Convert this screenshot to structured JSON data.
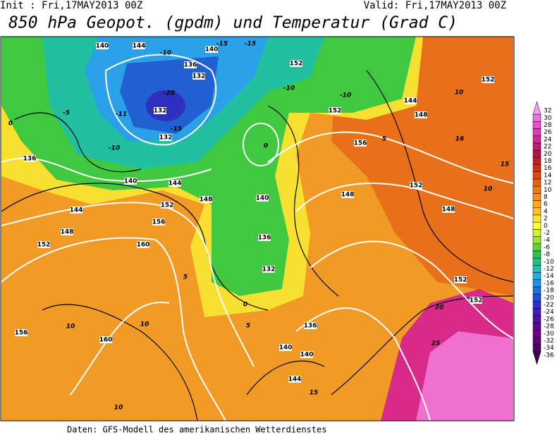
{
  "header": {
    "init": "Init : Fri,17MAY2013 00Z",
    "valid": "Valid: Fri,17MAY2013 00Z",
    "title": "850 hPa Geopot. (gpdm) und Temperatur (Grad C)"
  },
  "colorbar": {
    "entries": [
      {
        "value": 32,
        "color": "#f59af5"
      },
      {
        "value": 30,
        "color": "#f070e0"
      },
      {
        "value": 28,
        "color": "#e850c8"
      },
      {
        "value": 26,
        "color": "#e03cb0"
      },
      {
        "value": 24,
        "color": "#d02890"
      },
      {
        "value": 22,
        "color": "#c01870"
      },
      {
        "value": 20,
        "color": "#b01050"
      },
      {
        "value": 18,
        "color": "#c02020"
      },
      {
        "value": 16,
        "color": "#d03010"
      },
      {
        "value": 14,
        "color": "#e04810"
      },
      {
        "value": 12,
        "color": "#e86010"
      },
      {
        "value": 10,
        "color": "#f07810"
      },
      {
        "value": 8,
        "color": "#f89018"
      },
      {
        "value": 6,
        "color": "#ffa820"
      },
      {
        "value": 4,
        "color": "#ffc020"
      },
      {
        "value": 2,
        "color": "#ffe030"
      },
      {
        "value": 0,
        "color": "#ffff40"
      },
      {
        "value": -2,
        "color": "#d0f030"
      },
      {
        "value": -4,
        "color": "#a0e030"
      },
      {
        "value": -6,
        "color": "#60d040"
      },
      {
        "value": -8,
        "color": "#30c050"
      },
      {
        "value": -10,
        "color": "#20c080"
      },
      {
        "value": -12,
        "color": "#20c0b0"
      },
      {
        "value": -14,
        "color": "#20b0e0"
      },
      {
        "value": -16,
        "color": "#2090f0"
      },
      {
        "value": -18,
        "color": "#2070e0"
      },
      {
        "value": -20,
        "color": "#2050d0"
      },
      {
        "value": -22,
        "color": "#3030c0"
      },
      {
        "value": -24,
        "color": "#4020b0"
      },
      {
        "value": -26,
        "color": "#5010a0"
      },
      {
        "value": -28,
        "color": "#600890"
      },
      {
        "value": -30,
        "color": "#700080"
      },
      {
        "value": -32,
        "color": "#600070"
      },
      {
        "value": -34,
        "color": "#500060"
      },
      {
        "value": -36,
        "color": "#400050"
      }
    ]
  },
  "map": {
    "contour_labels": [
      "140",
      "144",
      "-10",
      "140",
      "-15",
      "-15",
      "136",
      "132",
      "-20",
      "132",
      "-11",
      "-15",
      "132",
      "-10",
      "136",
      "140",
      "144",
      "152",
      "148",
      "144",
      "148",
      "152",
      "156",
      "160",
      "140",
      "136",
      "132",
      "152",
      "-10",
      "-10",
      "152",
      "144",
      "148",
      "156",
      "148",
      "152",
      "148",
      "152",
      "160",
      "156",
      "10",
      "10",
      "136",
      "140",
      "140",
      "144",
      "15",
      "152",
      "152",
      "20",
      "25",
      "10",
      "5",
      "0",
      "5",
      "0",
      "0",
      "-5",
      "5",
      "10",
      "15",
      "16",
      "10"
    ]
  },
  "footer": "Daten: GFS-Modell des amerikanischen Wetterdienstes"
}
